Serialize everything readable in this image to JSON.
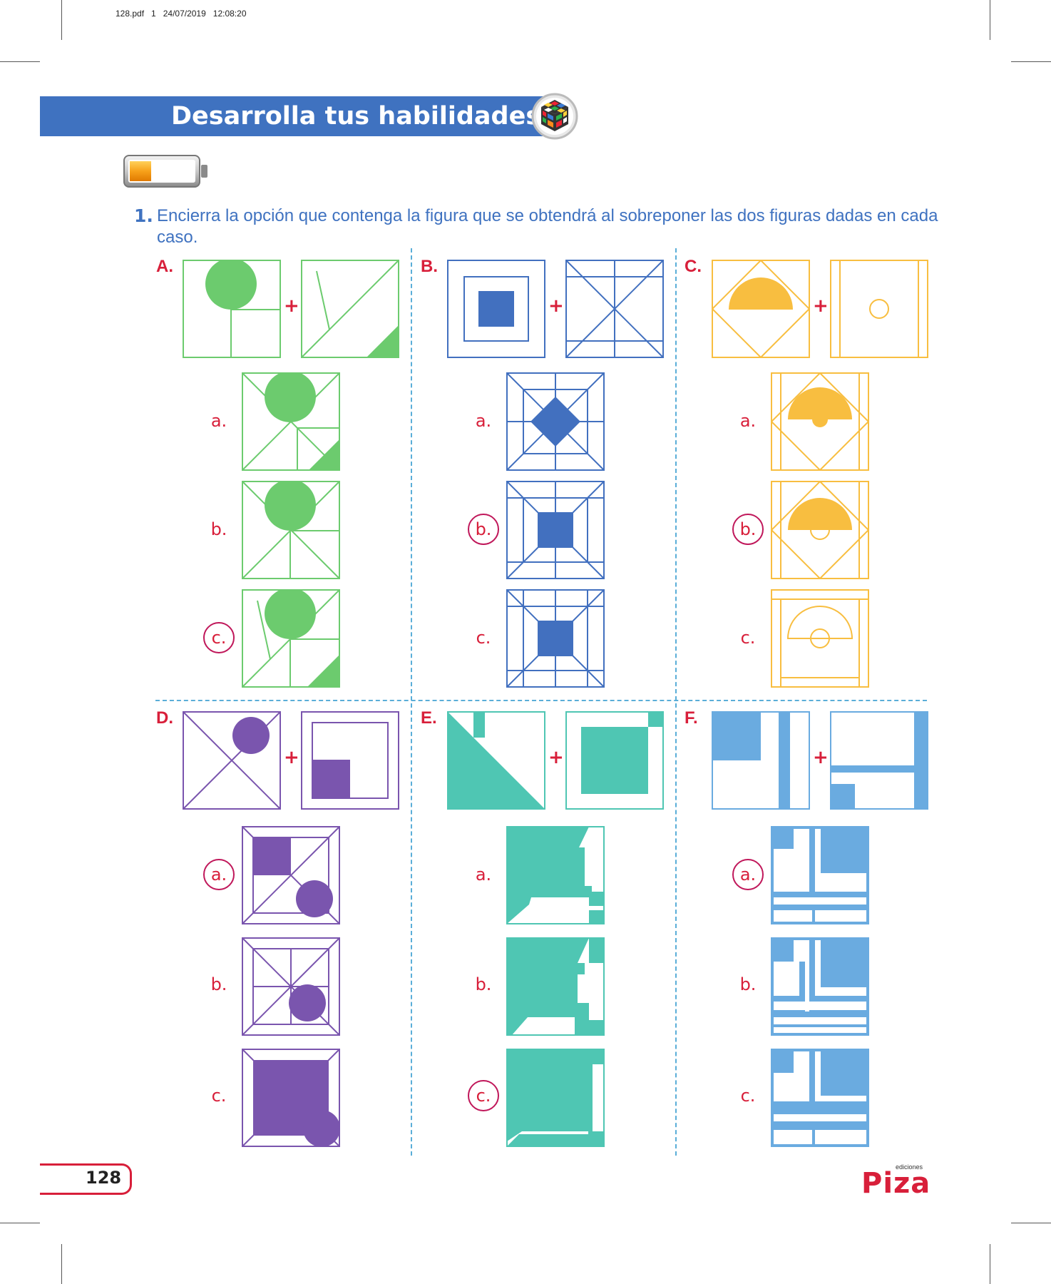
{
  "print_info": "128.pdf   1   24/07/2019   12:08:20",
  "header": {
    "title": "Desarrolla tus habilidades",
    "icon": "rubiks-cube-icon",
    "level_icon": "battery-level-icon"
  },
  "question": {
    "number": "1.",
    "text": "Encierra la opción que contenga la figura que se obtendrá al sobreponer las dos figuras dadas en cada caso."
  },
  "plus_sign": "+",
  "colors": {
    "A": "#6ccb6e",
    "B": "#4270bf",
    "C": "#f8be40",
    "D": "#7a55ae",
    "E": "#4fc6b3",
    "F": "#6aabe0",
    "accent_red": "#d81f3a",
    "circle_mark": "#c0175a",
    "banner": "#3f72c0"
  },
  "problems": [
    {
      "id": "A",
      "label": "A.",
      "answer": "c.",
      "options": [
        "a.",
        "b.",
        "c."
      ]
    },
    {
      "id": "B",
      "label": "B.",
      "answer": "b.",
      "options": [
        "a.",
        "b.",
        "c."
      ]
    },
    {
      "id": "C",
      "label": "C.",
      "answer": "b.",
      "options": [
        "a.",
        "b.",
        "c."
      ]
    },
    {
      "id": "D",
      "label": "D.",
      "answer": "a.",
      "options": [
        "a.",
        "b.",
        "c."
      ]
    },
    {
      "id": "E",
      "label": "E.",
      "answer": "c.",
      "options": [
        "a.",
        "b.",
        "c."
      ]
    },
    {
      "id": "F",
      "label": "F.",
      "answer": "a.",
      "options": [
        "a.",
        "b.",
        "c."
      ]
    }
  ],
  "footer": {
    "page_number": "128",
    "brand": "Piza",
    "brand_sub": "ediciones"
  }
}
